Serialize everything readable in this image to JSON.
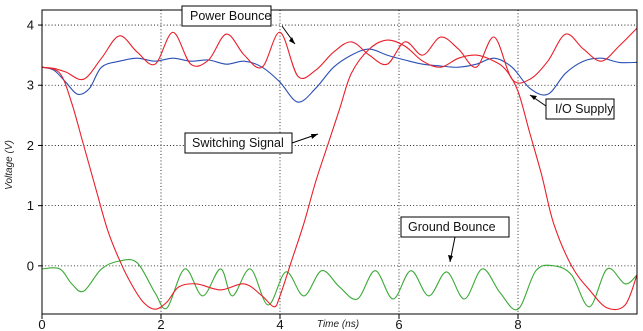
{
  "chart_data": {
    "type": "line",
    "xlabel": "Time (ns)",
    "ylabel": "Voltage (V)",
    "xlim": [
      0,
      10
    ],
    "ylim": [
      -0.8,
      4.25
    ],
    "xticks": [
      "0",
      "2",
      "4",
      "6",
      "8"
    ],
    "yticks": [
      "0",
      "1",
      "2",
      "3",
      "4"
    ],
    "grid": true,
    "series": [
      {
        "name": "Switching Signal",
        "color": "#e8202a",
        "x": [
          0,
          0.3,
          0.5,
          0.7,
          0.9,
          1.1,
          1.3,
          1.5,
          1.7,
          1.9,
          2.1,
          2.3,
          2.6,
          3.0,
          3.4,
          3.7,
          3.9,
          4.0,
          4.2,
          4.4,
          4.6,
          4.8,
          5.0,
          5.2,
          5.5,
          5.8,
          6.1,
          6.4,
          6.7,
          7.0,
          7.3,
          7.6,
          7.8,
          8.0,
          8.2,
          8.4,
          8.6,
          8.9,
          9.2,
          9.5,
          9.8,
          10.0
        ],
        "y": [
          3.3,
          3.2,
          2.7,
          2.0,
          1.3,
          0.6,
          0.1,
          -0.3,
          -0.6,
          -0.72,
          -0.6,
          -0.35,
          -0.3,
          -0.4,
          -0.3,
          -0.5,
          -0.68,
          -0.5,
          0.1,
          0.7,
          1.4,
          2.0,
          2.6,
          3.2,
          3.6,
          3.75,
          3.65,
          3.4,
          3.3,
          3.45,
          3.5,
          3.4,
          3.25,
          2.9,
          2.2,
          1.5,
          0.7,
          0.0,
          -0.4,
          -0.7,
          -0.65,
          -0.15
        ]
      },
      {
        "name": "Power Bounce",
        "color": "#e8202a",
        "x": [
          0,
          0.2,
          0.4,
          0.7,
          1.0,
          1.3,
          1.6,
          1.9,
          2.2,
          2.5,
          2.8,
          3.1,
          3.4,
          3.7,
          4.0,
          4.3,
          4.6,
          4.9,
          5.2,
          5.5,
          5.8,
          6.1,
          6.4,
          6.7,
          7.0,
          7.3,
          7.6,
          7.9,
          8.2,
          8.5,
          8.8,
          9.1,
          9.4,
          9.7,
          10.0
        ],
        "y": [
          3.3,
          3.28,
          3.22,
          3.1,
          3.45,
          3.82,
          3.55,
          3.35,
          3.88,
          3.35,
          3.42,
          3.85,
          3.5,
          3.3,
          3.88,
          3.15,
          3.25,
          3.55,
          3.72,
          3.5,
          3.35,
          3.72,
          3.5,
          3.8,
          3.6,
          3.3,
          3.8,
          3.1,
          3.1,
          3.4,
          3.85,
          3.6,
          3.4,
          3.65,
          3.95
        ]
      },
      {
        "name": "I/O Supply",
        "color": "#2b4fb5",
        "x": [
          0,
          0.2,
          0.4,
          0.6,
          0.8,
          1.0,
          1.3,
          1.6,
          1.9,
          2.2,
          2.5,
          2.8,
          3.1,
          3.4,
          3.7,
          4.0,
          4.3,
          4.6,
          4.9,
          5.2,
          5.5,
          5.8,
          6.1,
          6.4,
          6.7,
          7.0,
          7.3,
          7.6,
          7.9,
          8.2,
          8.5,
          8.8,
          9.1,
          9.4,
          9.7,
          10.0
        ],
        "y": [
          3.3,
          3.25,
          3.05,
          2.85,
          2.95,
          3.3,
          3.4,
          3.45,
          3.4,
          3.45,
          3.4,
          3.42,
          3.35,
          3.4,
          3.3,
          3.05,
          2.72,
          2.95,
          3.3,
          3.5,
          3.6,
          3.5,
          3.42,
          3.35,
          3.32,
          3.3,
          3.35,
          3.45,
          3.3,
          2.95,
          2.85,
          3.2,
          3.4,
          3.45,
          3.38,
          3.38
        ]
      },
      {
        "name": "Ground Bounce",
        "color": "#3aaa35",
        "x": [
          0,
          0.3,
          0.5,
          0.7,
          1.0,
          1.3,
          1.6,
          1.9,
          2.1,
          2.4,
          2.7,
          3.0,
          3.2,
          3.5,
          3.8,
          4.1,
          4.4,
          4.7,
          5.0,
          5.3,
          5.6,
          5.9,
          6.2,
          6.5,
          6.8,
          7.1,
          7.4,
          7.7,
          8.0,
          8.3,
          8.6,
          8.9,
          9.2,
          9.5,
          9.8,
          10.0
        ],
        "y": [
          -0.05,
          -0.05,
          -0.3,
          -0.42,
          -0.05,
          0.08,
          0.05,
          -0.45,
          -0.7,
          -0.05,
          -0.5,
          -0.05,
          -0.5,
          -0.05,
          -0.65,
          -0.1,
          -0.5,
          -0.08,
          -0.35,
          -0.55,
          -0.08,
          -0.55,
          -0.08,
          -0.5,
          -0.1,
          -0.55,
          -0.05,
          -0.45,
          -0.72,
          -0.08,
          0.0,
          -0.15,
          -0.68,
          -0.05,
          -0.3,
          -0.15
        ]
      }
    ],
    "annotations": [
      {
        "text": "Power Bounce",
        "x": 4.3,
        "y": 3.85
      },
      {
        "text": "I/O Supply",
        "x": 8.35,
        "y": 2.88
      },
      {
        "text": "Switching Signal",
        "x": 4.7,
        "y": 2.12
      },
      {
        "text": "Ground Bounce",
        "x": 6.85,
        "y": -0.05
      }
    ]
  }
}
